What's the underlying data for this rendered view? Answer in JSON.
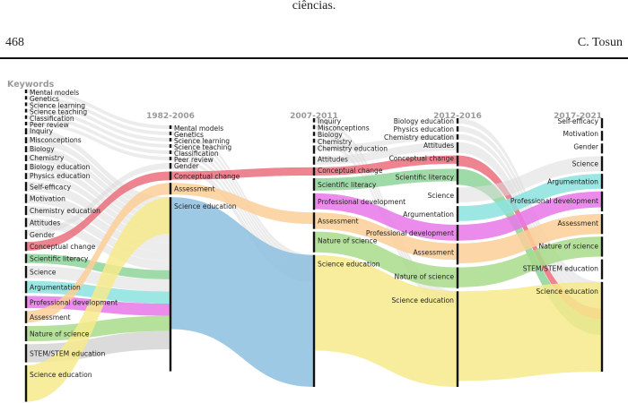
{
  "page": {
    "running_text": "ciências.",
    "page_number": "468",
    "author": "C. Tosun"
  },
  "chart_data": {
    "type": "sankey",
    "title": "Keywords",
    "periods": [
      "1982-2006",
      "2007-2011",
      "2012-2016",
      "2017-2021"
    ],
    "colors": {
      "Conceptual change": "#ea6f7d",
      "Scientific literacy": "#8ed49a",
      "Argumentation": "#8be3de",
      "Professional development": "#e777e8",
      "Assessment": "#fbcf96",
      "Nature of science": "#a8dc8c",
      "STEM/STEM education": "#d5d5d5",
      "Science education": "#f6ea8c",
      "other": "#dcdcdc",
      "blue": "#8dbfdf"
    },
    "columns": [
      {
        "label": "",
        "nodes": [
          {
            "name": "Mental models",
            "size": 1
          },
          {
            "name": "Genetics",
            "size": 1
          },
          {
            "name": "Science learning",
            "size": 1
          },
          {
            "name": "Science teaching",
            "size": 1
          },
          {
            "name": "Classification",
            "size": 1
          },
          {
            "name": "Peer review",
            "size": 1
          },
          {
            "name": "Inquiry",
            "size": 2
          },
          {
            "name": "Misconceptions",
            "size": 2
          },
          {
            "name": "Biology",
            "size": 2
          },
          {
            "name": "Chemistry",
            "size": 2
          },
          {
            "name": "Biology education",
            "size": 2
          },
          {
            "name": "Physics education",
            "size": 2
          },
          {
            "name": "Self-efficacy",
            "size": 3
          },
          {
            "name": "Motivation",
            "size": 3
          },
          {
            "name": "Chemistry education",
            "size": 3
          },
          {
            "name": "Attitudes",
            "size": 3
          },
          {
            "name": "Gender",
            "size": 3
          },
          {
            "name": "Conceptual change",
            "size": 3
          },
          {
            "name": "Scientific literacy",
            "size": 3
          },
          {
            "name": "Science",
            "size": 4
          },
          {
            "name": "Argumentation",
            "size": 4
          },
          {
            "name": "Professional development",
            "size": 4
          },
          {
            "name": "Assessment",
            "size": 4
          },
          {
            "name": "Nature of science",
            "size": 5
          },
          {
            "name": "STEM/STEM education",
            "size": 6
          },
          {
            "name": "Science education",
            "size": 12
          }
        ]
      },
      {
        "label": "1982-2006",
        "nodes": [
          {
            "name": "Mental models",
            "size": 1
          },
          {
            "name": "Genetics",
            "size": 1
          },
          {
            "name": "Science learning",
            "size": 1
          },
          {
            "name": "Science teaching",
            "size": 1
          },
          {
            "name": "Classification",
            "size": 1
          },
          {
            "name": "Peer review",
            "size": 1
          },
          {
            "name": "Gender",
            "size": 2
          },
          {
            "name": "Conceptual change",
            "size": 3
          },
          {
            "name": "Assessment",
            "size": 4
          },
          {
            "name": "Science education",
            "size": 60
          }
        ]
      },
      {
        "label": "2007-2011",
        "nodes": [
          {
            "name": "Inquiry",
            "size": 1
          },
          {
            "name": "Misconceptions",
            "size": 1
          },
          {
            "name": "Biology",
            "size": 1
          },
          {
            "name": "Chemistry",
            "size": 1
          },
          {
            "name": "Chemistry education",
            "size": 2
          },
          {
            "name": "Attitudes",
            "size": 2
          },
          {
            "name": "Conceptual change",
            "size": 2
          },
          {
            "name": "Scientific literacy",
            "size": 3
          },
          {
            "name": "Professional development",
            "size": 4
          },
          {
            "name": "Assessment",
            "size": 4
          },
          {
            "name": "Nature of science",
            "size": 5
          },
          {
            "name": "Science education",
            "size": 32
          }
        ]
      },
      {
        "label": "2012-2016",
        "nodes": [
          {
            "name": "Biology education",
            "size": 1
          },
          {
            "name": "Physics education",
            "size": 1
          },
          {
            "name": "Chemistry education",
            "size": 1
          },
          {
            "name": "Attitudes",
            "size": 2
          },
          {
            "name": "Conceptual change",
            "size": 2
          },
          {
            "name": "Scientific literacy",
            "size": 3
          },
          {
            "name": "Science",
            "size": 3
          },
          {
            "name": "Argumentation",
            "size": 3
          },
          {
            "name": "Professional development",
            "size": 3
          },
          {
            "name": "Assessment",
            "size": 4
          },
          {
            "name": "Nature of science",
            "size": 4
          },
          {
            "name": "Science education",
            "size": 18
          }
        ]
      },
      {
        "label": "2017-2021",
        "nodes": [
          {
            "name": "Self-efficacy",
            "size": 2
          },
          {
            "name": "Motivation",
            "size": 2
          },
          {
            "name": "Gender",
            "size": 2
          },
          {
            "name": "Science",
            "size": 3
          },
          {
            "name": "Argumentation",
            "size": 3
          },
          {
            "name": "Professional development",
            "size": 4
          },
          {
            "name": "Assessment",
            "size": 4
          },
          {
            "name": "Nature of science",
            "size": 4
          },
          {
            "name": "STEM/STEM education",
            "size": 4
          },
          {
            "name": "Science education",
            "size": 18
          }
        ]
      }
    ]
  }
}
